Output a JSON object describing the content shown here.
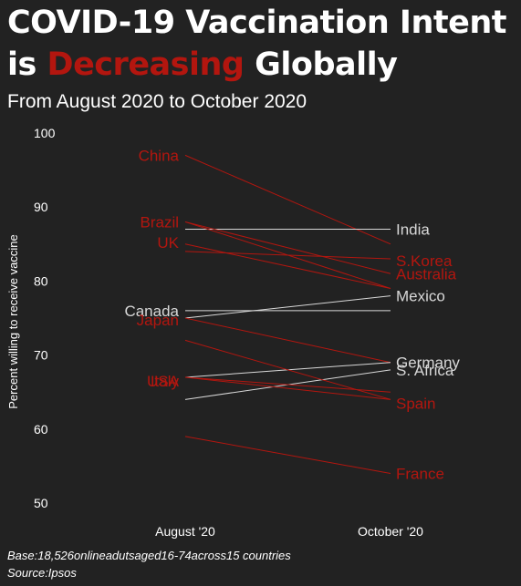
{
  "title": {
    "line1": "COVID-19 Vaccination Intent",
    "prefix": "is ",
    "highlight": "Decreasing",
    "suffix": " Globally"
  },
  "subtitle": "From August 2020 to October 2020",
  "footer": {
    "base": "Base:18,526onlineadutsaged16-74across15 countries",
    "source": "Source:Ipsos"
  },
  "colors": {
    "background": "#222222",
    "decreasing": "#b3160f",
    "not_decreasing": "#d8d8d8",
    "text": "#ffffff"
  },
  "chart_data": {
    "type": "line",
    "title": "",
    "ylabel": "Percent willing to receive vaccine",
    "xlabel": "",
    "categories": [
      "August '20",
      "October '20"
    ],
    "ylim": [
      50,
      100
    ],
    "yticks": [
      50,
      60,
      70,
      80,
      90,
      100
    ],
    "grid": false,
    "legend": "none",
    "series": [
      {
        "name": "China",
        "values": [
          97,
          85
        ],
        "trend": "down",
        "label_start": true,
        "label_end": false
      },
      {
        "name": "India",
        "values": [
          87,
          87
        ],
        "trend": "flat",
        "label_start": false,
        "label_end": true
      },
      {
        "name": "Brazil",
        "values": [
          88,
          79
        ],
        "trend": "down",
        "label_start": true,
        "label_end": false
      },
      {
        "name": "UK",
        "values": [
          85,
          79
        ],
        "trend": "down",
        "label_start": true,
        "label_end": false
      },
      {
        "name": "S.Korea",
        "values": [
          84,
          83
        ],
        "trend": "down",
        "label_start": false,
        "label_end": true
      },
      {
        "name": "Australia",
        "values": [
          88,
          81
        ],
        "trend": "down",
        "label_start": false,
        "label_end": true
      },
      {
        "name": "Canada",
        "values": [
          76,
          76
        ],
        "trend": "flat",
        "label_start": true,
        "label_end": false
      },
      {
        "name": "Mexico",
        "values": [
          75,
          78
        ],
        "trend": "up",
        "label_start": false,
        "label_end": true
      },
      {
        "name": "Japan",
        "values": [
          75,
          69
        ],
        "trend": "down",
        "label_start": true,
        "label_end": false
      },
      {
        "name": "Germany",
        "values": [
          67,
          69
        ],
        "trend": "up",
        "label_start": false,
        "label_end": true
      },
      {
        "name": "S. Africa",
        "values": [
          64,
          68
        ],
        "trend": "up",
        "label_start": false,
        "label_end": true
      },
      {
        "name": "USA",
        "values": [
          67,
          64
        ],
        "trend": "down",
        "label_start": true,
        "label_end": false
      },
      {
        "name": "Italy",
        "values": [
          67,
          65
        ],
        "trend": "down",
        "label_start": true,
        "label_end": false
      },
      {
        "name": "Spain",
        "values": [
          72,
          64
        ],
        "trend": "down",
        "label_start": false,
        "label_end": true
      },
      {
        "name": "France",
        "values": [
          59,
          54
        ],
        "trend": "down",
        "label_start": false,
        "label_end": true
      }
    ]
  }
}
